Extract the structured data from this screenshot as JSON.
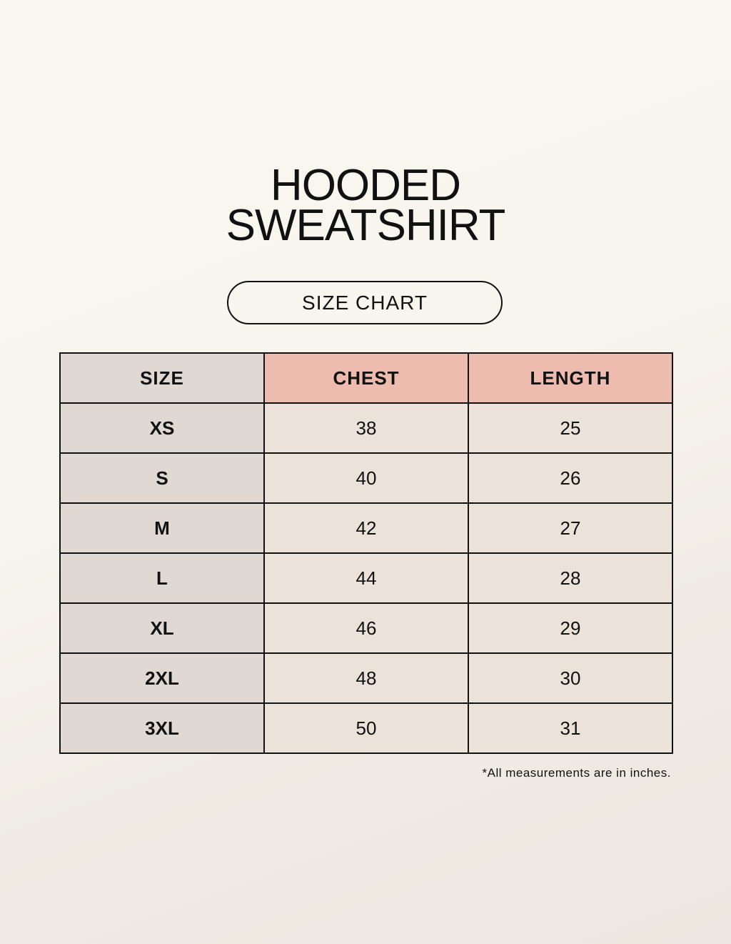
{
  "title_line1": "HOODED",
  "title_line2": "SWEATSHIRT",
  "subtitle": "SIZE CHART",
  "colors": {
    "size_column": "#e0d8d3",
    "measure_header": "#edbcae",
    "cell": "#ebe3d9"
  },
  "table": {
    "headers": [
      "SIZE",
      "CHEST",
      "LENGTH"
    ],
    "rows": [
      [
        "XS",
        "38",
        "25"
      ],
      [
        "S",
        "40",
        "26"
      ],
      [
        "M",
        "42",
        "27"
      ],
      [
        "L",
        "44",
        "28"
      ],
      [
        "XL",
        "46",
        "29"
      ],
      [
        "2XL",
        "48",
        "30"
      ],
      [
        "3XL",
        "50",
        "31"
      ]
    ]
  },
  "footnote": "*All measurements are in inches."
}
